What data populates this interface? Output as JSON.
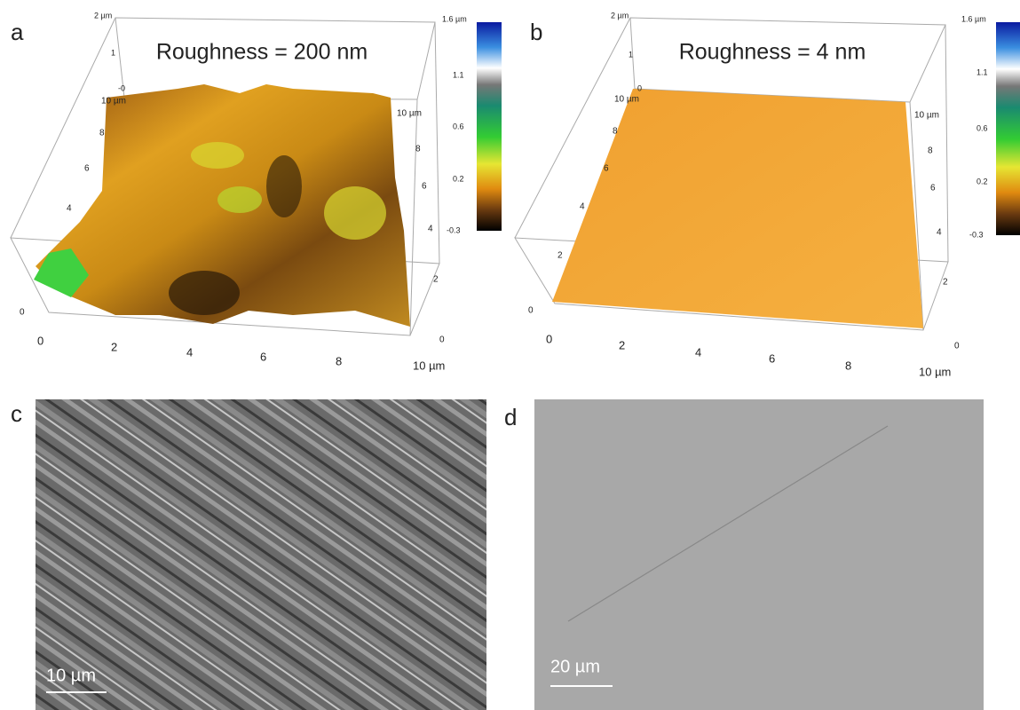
{
  "panels_afm": [
    {
      "label": "a",
      "title": "Roughness = 200 nm",
      "colorbar_ticks": [
        "1.6 µm",
        "1.1",
        "0.6",
        "0.2",
        "-0.3"
      ],
      "z_ticks": [
        "2 µm",
        "1",
        "-0"
      ],
      "x_ticks": [
        "0",
        "2",
        "4",
        "6",
        "8",
        "10 µm"
      ],
      "y_ticks": [
        "10 µm",
        "8",
        "6",
        "4",
        "0"
      ],
      "right_ticks": [
        "10 µm",
        "8",
        "6",
        "4",
        "2",
        "0"
      ]
    },
    {
      "label": "b",
      "title": "Roughness = 4 nm",
      "colorbar_ticks": [
        "1.6 µm",
        "1.1",
        "0.6",
        "0.2",
        "-0.3"
      ],
      "z_ticks": [
        "2 µm",
        "1",
        "0"
      ],
      "x_ticks": [
        "0",
        "2",
        "4",
        "6",
        "8",
        "10 µm"
      ],
      "y_ticks": [
        "10 µm",
        "8",
        "6",
        "4",
        "2",
        "0"
      ],
      "right_ticks": [
        "10 µm",
        "8",
        "6",
        "4",
        "2",
        "0"
      ]
    }
  ],
  "panels_sem": [
    {
      "label": "c",
      "scale_bar": "10 µm"
    },
    {
      "label": "d",
      "scale_bar": "20 µm"
    }
  ]
}
